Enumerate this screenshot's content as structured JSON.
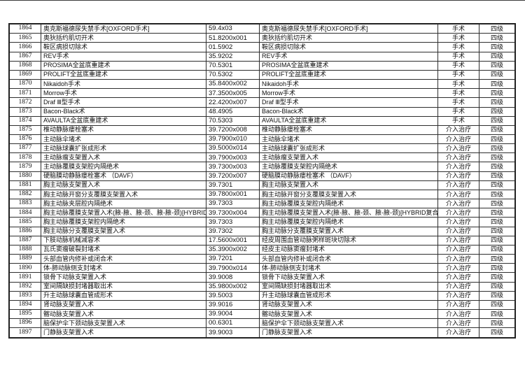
{
  "table": {
    "columns": [
      "row-number",
      "procedure-name",
      "procedure-code",
      "procedure-standard-name",
      "category",
      "level"
    ],
    "category_values": {
      "surgery": "手术",
      "intervention": "介入治疗"
    },
    "level_value": "四级",
    "rows": [
      [
        "1864",
        "奥克斯福德尿失禁手术[OXFORD手术]",
        "59.4x03",
        "奥克斯福德尿失禁手术[OXFORD手术]",
        "手术",
        "四级"
      ],
      [
        "1865",
        "奥狄括约肌切开术",
        "51.8200x001",
        "奥狄括约肌切开术",
        "手术",
        "四级"
      ],
      [
        "1866",
        "鞍区病损切除术",
        "01.5902",
        "鞍区病损切除术",
        "手术",
        "四级"
      ],
      [
        "1867",
        "REV手术",
        "35.9202",
        "REV手术",
        "手术",
        "四级"
      ],
      [
        "1868",
        "PROSIMA全盆底重建术",
        "70.5301",
        "PROSIMA全盆底重建术",
        "手术",
        "四级"
      ],
      [
        "1869",
        "PROLIFT全盆底重建术",
        "70.5302",
        "PROLIFT全盆底重建术",
        "手术",
        "四级"
      ],
      [
        "1870",
        "Nikaidoh手术",
        "35.8400x002",
        "Nikaidoh手术",
        "手术",
        "四级"
      ],
      [
        "1871",
        "Morrow手术",
        "37.3500x005",
        "Morrow手术",
        "手术",
        "四级"
      ],
      [
        "1872",
        "Draf Ⅲ型手术",
        "22.4200x007",
        "Draf Ⅲ型手术",
        "手术",
        "四级"
      ],
      [
        "1873",
        "Bacon-Black术",
        "48.4905",
        "Bacon-Black术",
        "手术",
        "四级"
      ],
      [
        "1874",
        "AVAULTA全盆底重建术",
        "70.5303",
        "AVAULTA全盆底重建术",
        "手术",
        "四级"
      ],
      [
        "1875",
        "椎动静脉瘘栓塞术",
        "39.7200x008",
        "椎动静脉瘘栓塞术",
        "介入治疗",
        "四级"
      ],
      [
        "1876",
        "主动脉伞堵术",
        "39.7900x010",
        "主动脉伞堵术",
        "介入治疗",
        "四级"
      ],
      [
        "1877",
        "主动脉球囊扩张成形术",
        "39.5000x014",
        "主动脉球囊扩张成形术",
        "介入治疗",
        "四级"
      ],
      [
        "1878",
        "主动脉瘤支架置入术",
        "39.7900x003",
        "主动脉瘤支架置入术",
        "介入治疗",
        "四级"
      ],
      [
        "1879",
        "主动脉覆膜支架腔内隔绝术",
        "39.7300x003",
        "主动脉覆膜支架腔内隔绝术",
        "介入治疗",
        "四级"
      ],
      [
        "1880",
        "硬脑膜动静脉瘘栓塞术 （DAVF）",
        "39.7200x007",
        "硬脑膜动静脉瘘栓塞术 （DAVF）",
        "介入治疗",
        "四级"
      ],
      [
        "1881",
        "胸主动脉支架置入术",
        "39.7301",
        "胸主动脉支架置入术",
        "介入治疗",
        "四级"
      ],
      [
        "1882",
        "胸主动脉开窗分支覆膜支架置入术",
        "39.7800x001",
        "胸主动脉开窗分支覆膜支架置入术",
        "介入治疗",
        "四级"
      ],
      [
        "1883",
        "胸主动脉夹层腔内隔绝术",
        "39.7303",
        "胸主动脉覆膜支架腔内隔绝术",
        "介入治疗",
        "四级"
      ],
      [
        "1884",
        "胸主动脉覆膜支架置入术(腋-腋、腋-颈、腋-腋-颈)[HYBRID",
        "39.7300x004",
        "胸主动脉覆膜支架置入术(腋-腋、腋-颈、腋-腋-颈)[HYBRID复合",
        "介入治疗",
        "四级"
      ],
      [
        "1885",
        "胸主动脉覆膜支架腔内隔绝术",
        "39.7303",
        "胸主动脉覆膜支架腔内隔绝术",
        "介入治疗",
        "四级"
      ],
      [
        "1886",
        "胸主动脉分支覆膜支架置入术",
        "39.7302",
        "胸主动脉分支覆膜支架置入术",
        "介入治疗",
        "四级"
      ],
      [
        "1887",
        "下肢动脉机械减容术",
        "17.5600x001",
        "经皮周围血管动脉粥样斑块切除术",
        "介入治疗",
        "四级"
      ],
      [
        "1888",
        "瓦氏窦瘤破裂封堵术",
        "35.3900x002",
        "经皮主动脉窦瘤封堵术",
        "介入治疗",
        "四级"
      ],
      [
        "1889",
        "头部血管内修补或闭合术",
        "39.7201",
        "头部血管内修补或闭合术",
        "介入治疗",
        "四级"
      ],
      [
        "1890",
        "体-肺动脉侧支封堵术",
        "39.7900x014",
        "体-肺动脉侧支封堵术",
        "介入治疗",
        "四级"
      ],
      [
        "1891",
        "锁骨下动脉支架置入术",
        "39.9008",
        "锁骨下动脉支架置入术",
        "介入治疗",
        "四级"
      ],
      [
        "1892",
        "室间隔缺损封堵器取出术",
        "35.9800x002",
        "室间隔缺损封堵器取出术",
        "介入治疗",
        "四级"
      ],
      [
        "1893",
        "升主动脉球囊血管成形术",
        "39.5003",
        "升主动脉球囊血管成形术",
        "介入治疗",
        "四级"
      ],
      [
        "1894",
        "肾动脉支架置入术",
        "39.9016",
        "肾动脉支架置入术",
        "介入治疗",
        "四级"
      ],
      [
        "1895",
        "髂动脉支架置入术",
        "39.9004",
        "髂动脉支架置入术",
        "介入治疗",
        "四级"
      ],
      [
        "1896",
        "脑保护伞下颈动脉支架置入术",
        "00.6301",
        "脑保护伞下颈动脉支架置入术",
        "介入治疗",
        "四级"
      ],
      [
        "1897",
        "门静脉支架置入术",
        "39.9003",
        "门静脉支架置入术",
        "介入治疗",
        "四级"
      ]
    ]
  }
}
